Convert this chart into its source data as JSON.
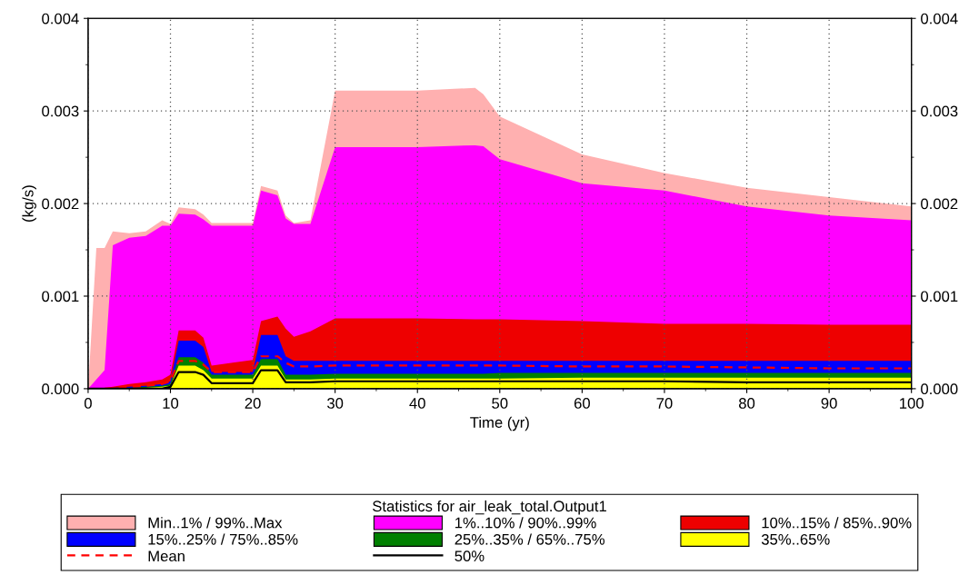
{
  "chart_data": {
    "type": "area",
    "xlabel": "Time (yr)",
    "ylabel": "(kg/s)",
    "legend_title": "Statistics for air_leak_total.Output1",
    "legend": "bottom",
    "grid": true,
    "x": [
      0,
      1,
      2,
      3,
      5,
      7,
      9,
      10,
      11,
      13,
      14,
      15,
      20,
      21,
      23,
      24,
      25,
      27,
      30,
      40,
      47,
      48,
      50,
      60,
      70,
      80,
      90,
      100
    ],
    "xlim": [
      0,
      100
    ],
    "xticks": [
      0,
      {
        "value": 5,
        "label": null
      },
      10,
      {
        "value": 15,
        "label": null
      },
      20,
      {
        "value": 25,
        "label": null
      },
      30,
      {
        "value": 35,
        "label": null
      },
      40,
      {
        "value": 45,
        "label": null
      },
      50,
      {
        "value": 55,
        "label": null
      },
      60,
      {
        "value": 65,
        "label": null
      },
      70,
      {
        "value": 75,
        "label": null
      },
      80,
      {
        "value": 85,
        "label": null
      },
      90,
      {
        "value": 95,
        "label": null
      },
      100
    ],
    "ylim": [
      0,
      0.004
    ],
    "yticks": [
      {
        "value": 0,
        "label": "0.000"
      },
      {
        "value": 0.0005,
        "label": null
      },
      0.001,
      {
        "value": 0.0015,
        "label": null
      },
      0.002,
      {
        "value": 0.0025,
        "label": null
      },
      0.003,
      {
        "value": 0.0035,
        "label": null
      },
      0.004
    ],
    "y2lim": [
      0,
      0.004
    ],
    "y2ticks": [
      {
        "value": 0,
        "label": "0.000"
      },
      {
        "value": 0.0005,
        "label": null
      },
      0.001,
      {
        "value": 0.0015,
        "label": null
      },
      0.002,
      {
        "value": 0.0025,
        "label": null
      },
      0.003,
      {
        "value": 0.0035,
        "label": null
      },
      0.004
    ],
    "series": [
      {
        "name": "Min..1% / 99%..Max",
        "color": "#ffb0b0",
        "values": [
          0,
          0.00152,
          0.00152,
          0.0017,
          0.00168,
          0.0017,
          0.00182,
          0.00178,
          0.00196,
          0.00194,
          0.00188,
          0.00179,
          0.00179,
          0.00219,
          0.00214,
          0.00187,
          0.00179,
          0.00182,
          0.00322,
          0.00322,
          0.00325,
          0.00318,
          0.00294,
          0.00253,
          0.00233,
          0.00217,
          0.00207,
          0.00197
        ]
      },
      {
        "name": "1%..10% / 90%..99%",
        "color": "#ff00ff",
        "values": [
          0,
          0.0001,
          0.0002,
          0.00155,
          0.00163,
          0.00165,
          0.00176,
          0.00176,
          0.00189,
          0.00188,
          0.00183,
          0.00176,
          0.00176,
          0.00214,
          0.00209,
          0.00184,
          0.00178,
          0.00178,
          0.00261,
          0.00261,
          0.00263,
          0.00262,
          0.00248,
          0.00222,
          0.00214,
          0.00197,
          0.00187,
          0.00182
        ]
      },
      {
        "name": "10%..15% / 85%..90%",
        "color": "#ee0000",
        "values": [
          0,
          0,
          1e-05,
          2e-05,
          5e-05,
          7e-05,
          0.0001,
          0.00015,
          0.00063,
          0.00063,
          0.00055,
          0.00025,
          0.00031,
          0.00073,
          0.00078,
          0.00065,
          0.00056,
          0.00062,
          0.00076,
          0.00076,
          0.00075,
          0.00075,
          0.00075,
          0.00073,
          0.0007,
          0.0007,
          0.00069,
          0.00069
        ]
      },
      {
        "name": "15%..25% / 75%..85%",
        "color": "#0000ff",
        "values": [
          0,
          0,
          0,
          1e-05,
          2e-05,
          3e-05,
          5e-05,
          8e-05,
          0.00052,
          0.00052,
          0.00045,
          0.00018,
          0.00018,
          0.00058,
          0.00058,
          0.00035,
          0.0003,
          0.0003,
          0.0003,
          0.0003,
          0.0003,
          0.0003,
          0.0003,
          0.0003,
          0.0003,
          0.0003,
          0.0003,
          0.0003
        ]
      },
      {
        "name": "25%..35% / 65%..75%",
        "color": "#008000",
        "values": [
          0,
          0,
          0,
          0,
          1e-05,
          2e-05,
          3e-05,
          5e-05,
          0.00034,
          0.00034,
          0.00028,
          0.00015,
          0.00015,
          0.00032,
          0.00032,
          0.00015,
          0.00015,
          0.00015,
          0.00016,
          0.00016,
          0.00016,
          0.00016,
          0.00017,
          0.00017,
          0.00017,
          0.00017,
          0.00017,
          0.00017
        ]
      },
      {
        "name": "35%..65%",
        "color": "#ffff00",
        "values": [
          0,
          0,
          0,
          0,
          0,
          1e-05,
          2e-05,
          3e-05,
          0.00025,
          0.00025,
          0.0002,
          0.00011,
          0.00011,
          0.00025,
          0.00025,
          0.0001,
          0.0001,
          0.0001,
          0.00011,
          0.00011,
          0.00011,
          0.00011,
          0.00011,
          0.00012,
          0.00012,
          0.00012,
          0.00012,
          0.00012
        ]
      },
      {
        "name": "Mean",
        "type": "line",
        "line_style": "dashed",
        "color": "#ff0000",
        "values": [
          null,
          null,
          0,
          0,
          2e-05,
          3e-05,
          5e-05,
          8e-05,
          0.0003,
          0.0003,
          0.00026,
          0.00018,
          0.00018,
          0.00035,
          0.00035,
          0.00028,
          0.00024,
          0.00024,
          0.00025,
          0.00025,
          0.00025,
          0.00025,
          0.00025,
          0.00024,
          0.00024,
          0.00023,
          0.00022,
          0.00022
        ]
      },
      {
        "name": "50%",
        "type": "line",
        "line_style": "solid",
        "color": "#000000",
        "values": [
          0,
          0,
          0,
          0,
          0,
          0,
          0,
          2e-05,
          0.00018,
          0.00018,
          0.00015,
          6e-05,
          6e-05,
          0.0002,
          0.0002,
          7e-05,
          7e-05,
          7e-05,
          8e-05,
          8e-05,
          8e-05,
          8e-05,
          8e-05,
          8e-05,
          8e-05,
          7e-05,
          7e-05,
          7e-05
        ]
      }
    ]
  }
}
